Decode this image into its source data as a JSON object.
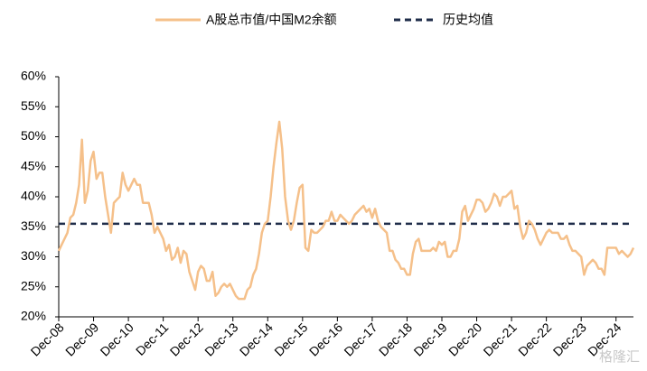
{
  "chart_data": {
    "type": "line",
    "categories": [
      "Dec-08",
      null,
      null,
      null,
      null,
      null,
      null,
      null,
      null,
      null,
      null,
      null,
      "Dec-09",
      null,
      null,
      null,
      null,
      null,
      null,
      null,
      null,
      null,
      null,
      null,
      "Dec-10",
      null,
      null,
      null,
      null,
      null,
      null,
      null,
      null,
      null,
      null,
      null,
      "Dec-11",
      null,
      null,
      null,
      null,
      null,
      null,
      null,
      null,
      null,
      null,
      null,
      "Dec-12",
      null,
      null,
      null,
      null,
      null,
      null,
      null,
      null,
      null,
      null,
      null,
      "Dec-13",
      null,
      null,
      null,
      null,
      null,
      null,
      null,
      null,
      null,
      null,
      null,
      "Dec-14",
      null,
      null,
      null,
      null,
      null,
      null,
      null,
      null,
      null,
      null,
      null,
      "Dec-15",
      null,
      null,
      null,
      null,
      null,
      null,
      null,
      null,
      null,
      null,
      null,
      "Dec-16",
      null,
      null,
      null,
      null,
      null,
      null,
      null,
      null,
      null,
      null,
      null,
      "Dec-17",
      null,
      null,
      null,
      null,
      null,
      null,
      null,
      null,
      null,
      null,
      null,
      "Dec-18",
      null,
      null,
      null,
      null,
      null,
      null,
      null,
      null,
      null,
      null,
      null,
      "Dec-19",
      null,
      null,
      null,
      null,
      null,
      null,
      null,
      null,
      null,
      null,
      null,
      "Dec-20",
      null,
      null,
      null,
      null,
      null,
      null,
      null,
      null,
      null,
      null,
      null,
      "Dec-21",
      null,
      null,
      null,
      null,
      null,
      null,
      null,
      null,
      null,
      null,
      null,
      "Dec-22",
      null,
      null,
      null,
      null,
      null,
      null,
      null,
      null,
      null,
      null,
      null,
      "Dec-23",
      null,
      null,
      null,
      null,
      null,
      null,
      null,
      null,
      null,
      null,
      null,
      "Dec-24",
      null,
      null,
      null,
      null,
      null,
      null
    ],
    "series": [
      {
        "name": "A股总市值/中国M2余额",
        "color": "#f5c08a",
        "values": [
          31,
          32,
          33,
          34,
          36.5,
          37,
          39,
          42,
          49.5,
          39,
          41,
          46,
          47.5,
          43,
          44,
          44,
          40,
          37,
          34,
          39,
          39.5,
          40,
          44,
          42,
          41,
          42,
          43,
          42,
          42,
          39,
          39,
          39,
          37,
          34,
          35,
          34,
          33,
          31,
          32,
          29.5,
          30,
          31.5,
          29,
          31,
          30.5,
          27.5,
          26,
          24.5,
          27.5,
          28.5,
          28,
          26,
          26,
          27.5,
          23.5,
          24,
          25,
          25.5,
          25,
          25.5,
          24.5,
          23.5,
          23,
          23,
          23,
          24.5,
          25,
          27,
          28,
          30.5,
          34,
          35.5,
          36,
          40,
          45,
          49,
          52.5,
          48,
          40,
          36,
          34.5,
          36,
          39,
          41.5,
          42,
          31.5,
          31,
          34.5,
          34,
          34,
          34.5,
          35,
          36,
          36,
          37.5,
          36,
          36,
          37,
          36.5,
          36,
          35.5,
          36,
          37,
          37.5,
          38,
          38.5,
          37.5,
          38,
          36.5,
          38,
          36,
          35,
          34.5,
          34,
          31,
          31,
          29.5,
          29,
          28,
          28,
          27,
          27,
          30.5,
          32.5,
          33,
          31,
          31,
          31,
          31,
          31.5,
          31,
          32.5,
          32,
          32.5,
          30,
          30,
          31,
          31,
          33,
          37.5,
          38.5,
          36,
          37,
          38,
          39.5,
          39.5,
          39,
          37.5,
          38,
          39,
          40.5,
          40,
          38.5,
          40,
          40,
          40.5,
          41,
          38,
          38.5,
          35,
          33,
          34,
          36,
          35.5,
          34.5,
          33,
          32,
          33,
          34,
          34.5,
          34,
          34,
          34,
          33,
          33,
          33.5,
          32,
          31,
          31,
          30.5,
          30,
          27,
          28.5,
          29,
          29.5,
          29,
          28,
          28,
          27,
          31.5,
          31.5,
          31.5,
          31.5,
          30.5,
          31,
          30.5,
          30,
          30.5,
          31.5
        ]
      }
    ],
    "mean_line": {
      "name": "历史均值",
      "value": 35.5,
      "color": "#1f2d4a"
    },
    "ylim": [
      20,
      60
    ],
    "yticks": [
      {
        "value": 20,
        "label": "20%"
      },
      {
        "value": 25,
        "label": "25%"
      },
      {
        "value": 30,
        "label": "30%"
      },
      {
        "value": 35,
        "label": "35%"
      },
      {
        "value": 40,
        "label": "40%"
      },
      {
        "value": 45,
        "label": "45%"
      },
      {
        "value": 50,
        "label": "50%"
      },
      {
        "value": 55,
        "label": "55%"
      },
      {
        "value": 60,
        "label": "60%"
      }
    ],
    "watermark": "格隆汇"
  }
}
